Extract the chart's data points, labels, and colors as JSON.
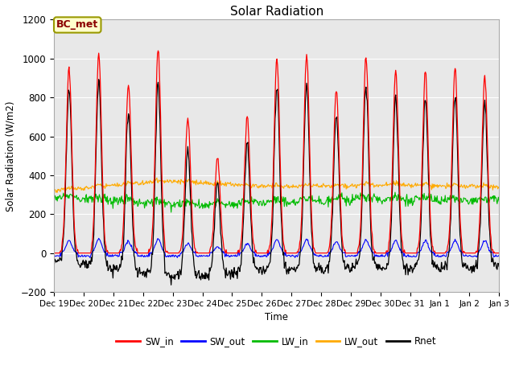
{
  "title": "Solar Radiation",
  "ylabel": "Solar Radiation (W/m2)",
  "xlabel": "Time",
  "ylim": [
    -200,
    1200
  ],
  "yticks": [
    -200,
    0,
    200,
    400,
    600,
    800,
    1000,
    1200
  ],
  "box_label": "BC_met",
  "legend_entries": [
    "SW_in",
    "SW_out",
    "LW_in",
    "LW_out",
    "Rnet"
  ],
  "colors": {
    "SW_in": "#ff0000",
    "SW_out": "#0000ff",
    "LW_in": "#00bb00",
    "LW_out": "#ffaa00",
    "Rnet": "#000000"
  },
  "figure_bg": "#ffffff",
  "plot_bg": "#e8e8e8",
  "n_days": 15,
  "tick_labels": [
    "Dec 19",
    "Dec 20",
    "Dec 21",
    "Dec 22",
    "Dec 23",
    "Dec 24",
    "Dec 25",
    "Dec 26",
    "Dec 27",
    "Dec 28",
    "Dec 29",
    "Dec 30",
    "Dec 31",
    "Jan 1",
    "Jan 2",
    "Jan 3"
  ],
  "SW_in_peaks": [
    950,
    1025,
    870,
    1045,
    690,
    480,
    700,
    1005,
    1015,
    840,
    1005,
    930,
    930,
    960,
    910
  ],
  "LW_out_base": 340,
  "LW_in_base": 270,
  "Rnet_night": -90
}
